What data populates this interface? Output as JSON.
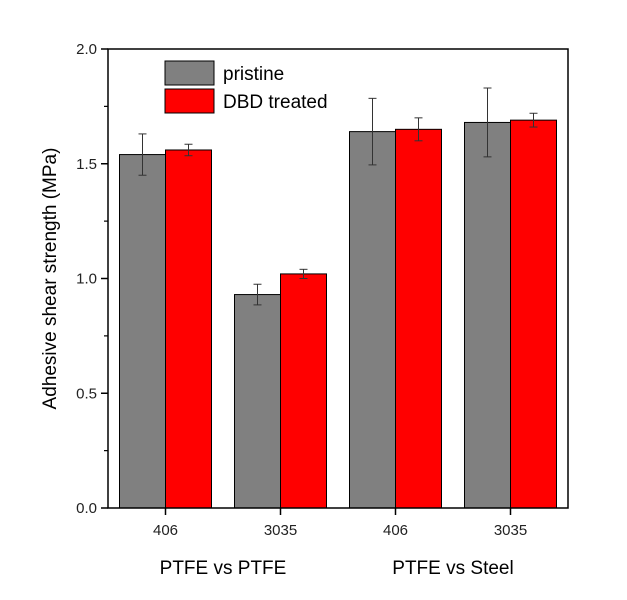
{
  "chart_data": {
    "type": "bar",
    "categories": [
      "406",
      "3035",
      "406",
      "3035"
    ],
    "groups": [
      {
        "label": "PTFE vs PTFE",
        "categories": [
          0,
          1
        ]
      },
      {
        "label": "PTFE vs Steel",
        "categories": [
          2,
          3
        ]
      }
    ],
    "series": [
      {
        "name": "pristine",
        "color": "#808080",
        "values": [
          1.54,
          0.93,
          1.64,
          1.68
        ],
        "errors": [
          0.09,
          0.045,
          0.145,
          0.15
        ]
      },
      {
        "name": "DBD treated",
        "color": "#ff0000",
        "values": [
          1.56,
          1.02,
          1.65,
          1.69
        ],
        "errors": [
          0.025,
          0.02,
          0.05,
          0.03
        ]
      }
    ],
    "ylabel": "Adhesive shear strength (MPa)",
    "xlabel": "",
    "ylim": [
      0.0,
      2.0
    ],
    "yticks": [
      0.0,
      0.5,
      1.0,
      1.5,
      2.0
    ],
    "ytick_labels": [
      "0.0",
      "0.5",
      "1.0",
      "1.5",
      "2.0"
    ],
    "grid": false,
    "legend_position": "top-left"
  }
}
